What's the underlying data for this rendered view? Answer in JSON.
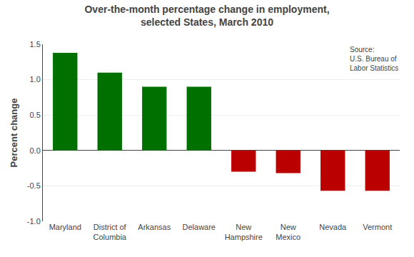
{
  "chart_data": {
    "type": "bar",
    "title": "Over-the-month percentage change in employment,\nselected States, March 2010",
    "ylabel": "Percent change",
    "categories": [
      "Maryland",
      "District of\nColumbia",
      "Arkansas",
      "Delaware",
      "New\nHampshire",
      "New\nMexico",
      "Nevada",
      "Vermont"
    ],
    "values": [
      1.38,
      1.1,
      0.9,
      0.9,
      -0.3,
      -0.32,
      -0.57,
      -0.57
    ],
    "colors": [
      "#007000",
      "#007000",
      "#007000",
      "#007000",
      "#bb0000",
      "#bb0000",
      "#bb0000",
      "#bb0000"
    ],
    "ylim": [
      -1.0,
      1.5
    ],
    "yticks": [
      {
        "value": -1.0,
        "label": "-1.0"
      },
      -0.5,
      {
        "value": 0.0,
        "label": "0.0"
      },
      0.5,
      {
        "value": 1.0,
        "label": "1.0"
      },
      1.5
    ],
    "grid": true,
    "annotations": [
      "Source:\nU.S. Bureau of\nLabor Statistics"
    ]
  }
}
